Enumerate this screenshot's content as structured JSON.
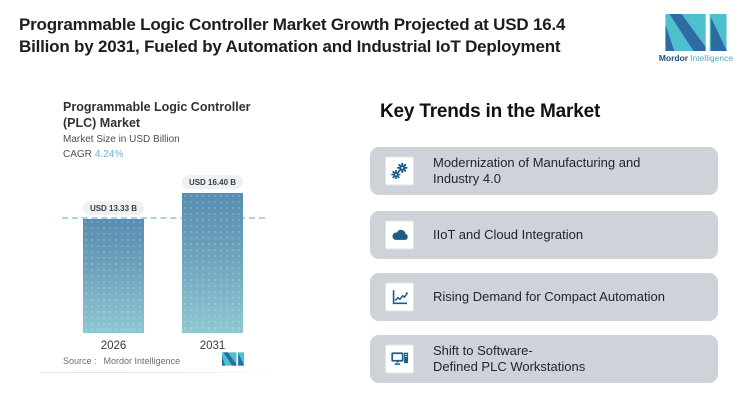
{
  "header": {
    "title_line1": "Programmable Logic Controller Market Growth Projected at USD 16.4",
    "title_line2": "Billion by 2031, Fueled by Automation and Industrial IoT Deployment",
    "brand": {
      "name_bold": "Mordor",
      "name_light": "Intelligence"
    }
  },
  "chart": {
    "title_line1": "Programmable Logic Controller",
    "title_line2": "(PLC) Market",
    "subtitle": "Market Size in USD Billion",
    "cagr_label": "CAGR",
    "cagr_value": "4.24%",
    "source_label": "Source :",
    "source_value": "Mordor Intelligence"
  },
  "chart_data": {
    "type": "bar",
    "title": "Programmable Logic Controller (PLC) Market",
    "ylabel": "Market Size in USD Billion",
    "cagr": "4.24%",
    "categories": [
      "2026",
      "2031"
    ],
    "values": [
      13.33,
      16.4
    ],
    "value_labels": [
      "USD 13.33 B",
      "USD 16.40 B"
    ],
    "units": "USD Billion",
    "ylim": [
      0,
      16.4
    ],
    "grid": false,
    "legend": "none",
    "annotations": [
      "horizontal dashed reference line at 13.33 (2026 level)"
    ],
    "bar_gradient": [
      "#588db1",
      "#8fc8d2"
    ]
  },
  "trends": {
    "heading": "Key Trends in the Market",
    "items": [
      {
        "icon": "gears-icon",
        "line1": "Modernization of Manufacturing and",
        "line2": "Industry 4.0"
      },
      {
        "icon": "cloud-icon",
        "line1": "IIoT and Cloud Integration",
        "line2": ""
      },
      {
        "icon": "line-chart-icon",
        "line1": "Rising Demand for Compact Automation",
        "line2": ""
      },
      {
        "icon": "workstation-icon",
        "line1": "Shift to Software-",
        "line2": "Defined PLC Workstations"
      }
    ]
  },
  "colors": {
    "brand_teal": "#4cc0cc",
    "brand_blue": "#2e6ba2",
    "bar_top": "#588db1",
    "bar_bottom": "#8fc8d2",
    "dashed_line": "#aed2e6",
    "cagr_value": "#6cb5d8",
    "card_bg": "#ced3da",
    "trend_icon": "#1d5c87",
    "pill_bg": "#eef1f1"
  }
}
